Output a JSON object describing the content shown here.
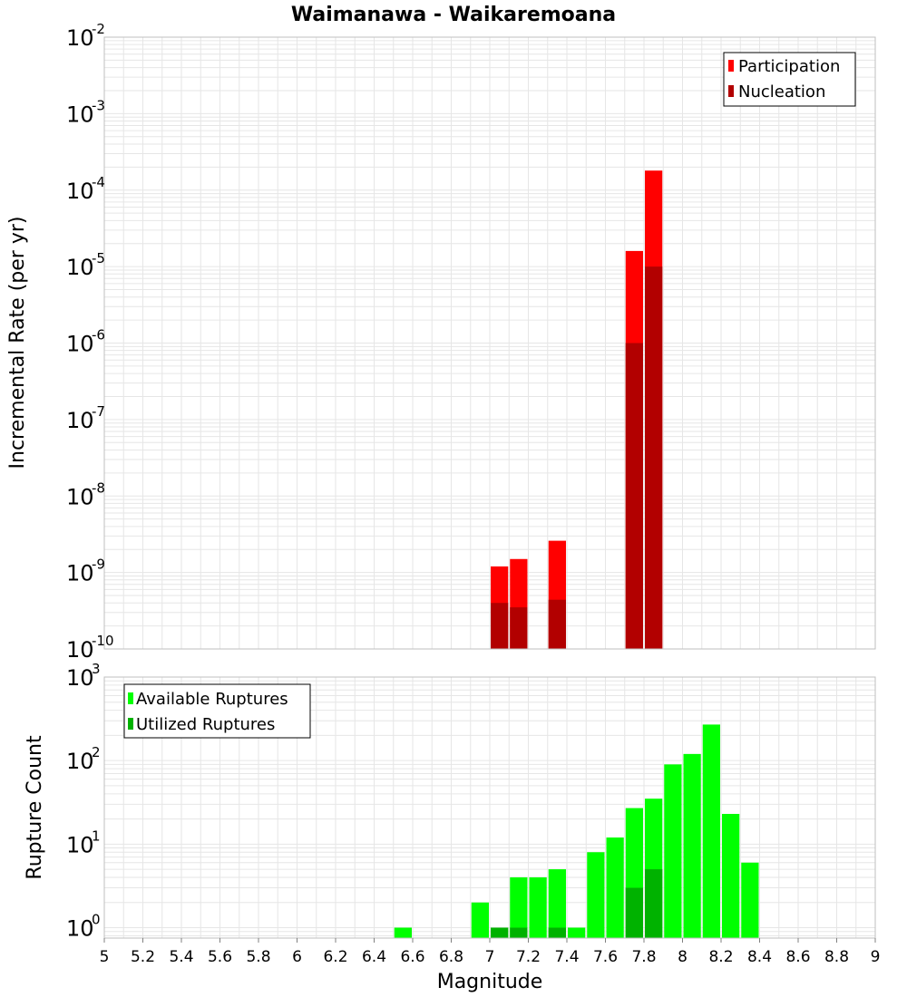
{
  "title": "Waimanawa - Waikaremoana",
  "xlabel": "Magnitude",
  "colors": {
    "participation": "#ff0000",
    "nucleation": "#b20000",
    "available": "#00ff00",
    "utilized": "#00b200",
    "grid": "#e6e6e6",
    "frame": "#bfbfbf"
  },
  "chart_data": [
    {
      "type": "bar",
      "title": "Waimanawa - Waikaremoana",
      "xlabel": "",
      "ylabel": "Incremental Rate (per yr)",
      "xlim": [
        5,
        9
      ],
      "ylim": [
        1e-10,
        0.01
      ],
      "yscale": "log",
      "grid": true,
      "legend_position": "top-right",
      "bin_width": 0.1,
      "y_tick_bases": [
        "10",
        "10",
        "10",
        "10",
        "10",
        "10",
        "10",
        "10",
        "10"
      ],
      "y_tick_exponents": [
        "-10",
        "-9",
        "-8",
        "-7",
        "-6",
        "-5",
        "-4",
        "-3",
        "-2"
      ],
      "series": [
        {
          "name": "Participation",
          "x": [
            7.05,
            7.15,
            7.35,
            7.75,
            7.85
          ],
          "values": [
            1.2e-09,
            1.5e-09,
            2.6e-09,
            1.6e-05,
            0.00018
          ]
        },
        {
          "name": "Nucleation",
          "x": [
            7.05,
            7.15,
            7.35,
            7.75,
            7.85
          ],
          "values": [
            4e-10,
            3.5e-10,
            4.4e-10,
            1e-06,
            1e-05
          ]
        }
      ]
    },
    {
      "type": "bar",
      "title": "",
      "xlabel": "Magnitude",
      "ylabel": "Rupture Count",
      "xlim": [
        5,
        9
      ],
      "ylim": [
        0.75,
        1000
      ],
      "yscale": "log",
      "grid": true,
      "legend_position": "top-left",
      "bin_width": 0.1,
      "x_tick_labels": [
        "5",
        "5.2",
        "5.4",
        "5.6",
        "5.8",
        "6",
        "6.2",
        "6.4",
        "6.6",
        "6.8",
        "7",
        "7.2",
        "7.4",
        "7.6",
        "7.8",
        "8",
        "8.2",
        "8.4",
        "8.6",
        "8.8",
        "9"
      ],
      "y_tick_bases": [
        "10",
        "10",
        "10",
        "10"
      ],
      "y_tick_exponents": [
        "0",
        "1",
        "2",
        "3"
      ],
      "series": [
        {
          "name": "Available Ruptures",
          "x": [
            6.55,
            6.95,
            7.05,
            7.15,
            7.25,
            7.35,
            7.45,
            7.55,
            7.65,
            7.75,
            7.85,
            7.95,
            8.05,
            8.15,
            8.25,
            8.35
          ],
          "values": [
            1,
            2,
            1,
            4,
            4,
            5,
            1,
            8,
            12,
            27,
            35,
            90,
            120,
            270,
            23,
            6
          ]
        },
        {
          "name": "Utilized Ruptures",
          "x": [
            7.05,
            7.15,
            7.35,
            7.75,
            7.85
          ],
          "values": [
            1,
            1,
            1,
            3,
            5
          ]
        }
      ]
    }
  ]
}
